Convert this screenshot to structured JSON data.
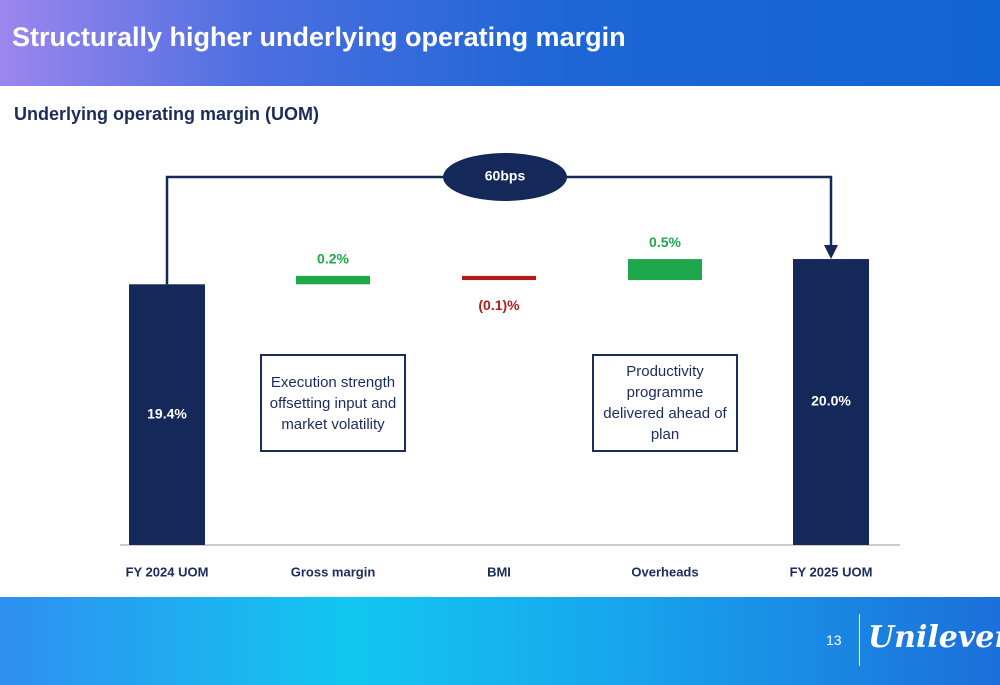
{
  "chart_data": {
    "type": "waterfall",
    "title": "Structurally higher underlying operating margin",
    "subtitle": "Underlying operating margin (UOM)",
    "categories": [
      "FY 2024 UOM",
      "Gross margin",
      "BMI",
      "Overheads",
      "FY 2025 UOM"
    ],
    "values": [
      19.4,
      0.2,
      -0.1,
      0.5,
      20.0
    ],
    "value_labels": [
      "19.4%",
      "0.2%",
      "(0.1)%",
      "0.5%",
      "20.0%"
    ],
    "measures": [
      "total",
      "relative",
      "relative",
      "relative",
      "total"
    ],
    "colors": {
      "total": "#14295a",
      "increasing": "#1ea84b",
      "decreasing": "#b01c1c"
    },
    "ylim": [
      13.2,
      21.0
    ],
    "bracket_label": "60bps",
    "notes": [
      "Execution strength offsetting input and market volatility",
      "Productivity programme delivered ahead of plan"
    ]
  },
  "footer": {
    "page_number": "13",
    "logo": "Unilever"
  }
}
